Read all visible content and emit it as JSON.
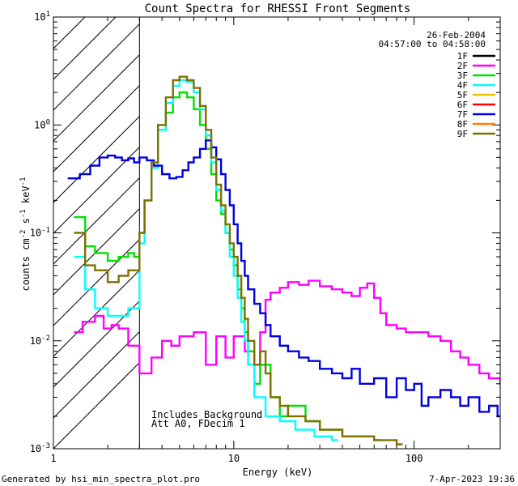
{
  "chart_data": {
    "type": "line",
    "title": "Count Spectra for RHESSI Front Segments",
    "xlabel": "Energy (keV)",
    "ylabel_parts": [
      "counts cm",
      "-2",
      " s",
      "-1",
      " keV",
      "-1"
    ],
    "xscale": "log",
    "yscale": "log",
    "xlim": [
      1,
      300
    ],
    "ylim": [
      0.001,
      10
    ],
    "x_ticks": [
      {
        "value": 1,
        "label": "1"
      },
      {
        "value": 10,
        "label": "10"
      },
      {
        "value": 100,
        "label": "100"
      }
    ],
    "y_ticks": [
      {
        "value": 0.001,
        "base": "10",
        "exp": "-3"
      },
      {
        "value": 0.01,
        "base": "10",
        "exp": "-2"
      },
      {
        "value": 0.1,
        "base": "10",
        "exp": "-1"
      },
      {
        "value": 1,
        "base": "10",
        "exp": "0"
      },
      {
        "value": 10,
        "base": "10",
        "exp": "1"
      }
    ],
    "date": "26-Feb-2004",
    "time_range": "04:57:00 to 04:58:00",
    "annotations": [
      "Includes Background",
      "Att A0, FDecim 1"
    ],
    "shaded_region_x": [
      1,
      3
    ],
    "legend_position": "top-right",
    "series": [
      {
        "name": "1F",
        "color": "#000000",
        "points": []
      },
      {
        "name": "2F",
        "color": "#ff00ff",
        "points": [
          [
            1.3,
            0.012
          ],
          [
            1.45,
            0.015
          ],
          [
            1.7,
            0.017
          ],
          [
            1.9,
            0.013
          ],
          [
            2.1,
            0.014
          ],
          [
            2.3,
            0.013
          ],
          [
            2.6,
            0.009
          ],
          [
            3.0,
            0.005
          ],
          [
            3.5,
            0.007
          ],
          [
            4.0,
            0.01
          ],
          [
            4.5,
            0.009
          ],
          [
            5.0,
            0.011
          ],
          [
            6.0,
            0.012
          ],
          [
            7.0,
            0.006
          ],
          [
            8.0,
            0.011
          ],
          [
            9.0,
            0.007
          ],
          [
            10.0,
            0.011
          ],
          [
            11.5,
            0.008
          ],
          [
            13.0,
            0.006
          ],
          [
            14.0,
            0.012
          ],
          [
            15.0,
            0.024
          ],
          [
            16.0,
            0.028
          ],
          [
            18.0,
            0.031
          ],
          [
            20.0,
            0.035
          ],
          [
            23.0,
            0.033
          ],
          [
            26.0,
            0.036
          ],
          [
            30.0,
            0.032
          ],
          [
            35.0,
            0.03
          ],
          [
            40.0,
            0.028
          ],
          [
            45.0,
            0.026
          ],
          [
            50.0,
            0.031
          ],
          [
            55.0,
            0.034
          ],
          [
            60.0,
            0.025
          ],
          [
            65.0,
            0.018
          ],
          [
            70.0,
            0.014
          ],
          [
            80.0,
            0.013
          ],
          [
            90.0,
            0.012
          ],
          [
            100.0,
            0.012
          ],
          [
            120.0,
            0.011
          ],
          [
            140.0,
            0.01
          ],
          [
            160.0,
            0.008
          ],
          [
            180.0,
            0.007
          ],
          [
            200.0,
            0.006
          ],
          [
            230.0,
            0.005
          ],
          [
            260.0,
            0.0045
          ],
          [
            300.0,
            0.004
          ]
        ]
      },
      {
        "name": "3F",
        "color": "#00e000",
        "points": [
          [
            1.3,
            0.14
          ],
          [
            1.5,
            0.075
          ],
          [
            1.7,
            0.065
          ],
          [
            2.0,
            0.055
          ],
          [
            2.3,
            0.06
          ],
          [
            2.6,
            0.065
          ],
          [
            2.8,
            0.06
          ],
          [
            3.0,
            0.1
          ],
          [
            3.2,
            0.2
          ],
          [
            3.5,
            0.4
          ],
          [
            3.8,
            0.9
          ],
          [
            4.2,
            1.3
          ],
          [
            4.6,
            1.8
          ],
          [
            5.0,
            2.0
          ],
          [
            5.5,
            1.8
          ],
          [
            6.0,
            1.4
          ],
          [
            6.5,
            1.0
          ],
          [
            7.0,
            0.6
          ],
          [
            7.5,
            0.35
          ],
          [
            8.0,
            0.2
          ],
          [
            8.5,
            0.15
          ],
          [
            9.0,
            0.1
          ],
          [
            9.5,
            0.07
          ],
          [
            10.0,
            0.05
          ],
          [
            10.5,
            0.03
          ],
          [
            11.0,
            0.02
          ],
          [
            11.5,
            0.012
          ],
          [
            12.0,
            0.008
          ],
          [
            13.0,
            0.004
          ],
          [
            14.0,
            0.006
          ],
          [
            16.0,
            0.003
          ],
          [
            18.0,
            0.002
          ],
          [
            20.0,
            0.0025
          ],
          [
            25.0,
            0.0018
          ],
          [
            30.0,
            0.0015
          ],
          [
            40.0,
            0.0013
          ],
          [
            60.0,
            0.0012
          ]
        ]
      },
      {
        "name": "4F",
        "color": "#00ffff",
        "points": [
          [
            1.3,
            0.06
          ],
          [
            1.5,
            0.03
          ],
          [
            1.7,
            0.02
          ],
          [
            2.0,
            0.017
          ],
          [
            2.3,
            0.017
          ],
          [
            2.6,
            0.02
          ],
          [
            3.0,
            0.08
          ],
          [
            3.2,
            0.2
          ],
          [
            3.5,
            0.4
          ],
          [
            3.8,
            0.9
          ],
          [
            4.2,
            1.6
          ],
          [
            4.6,
            2.3
          ],
          [
            5.0,
            2.6
          ],
          [
            5.5,
            2.5
          ],
          [
            6.0,
            2.0
          ],
          [
            6.5,
            1.4
          ],
          [
            7.0,
            0.8
          ],
          [
            7.5,
            0.45
          ],
          [
            8.0,
            0.25
          ],
          [
            8.5,
            0.16
          ],
          [
            9.0,
            0.1
          ],
          [
            9.5,
            0.06
          ],
          [
            10.0,
            0.04
          ],
          [
            10.5,
            0.025
          ],
          [
            11.0,
            0.015
          ],
          [
            11.5,
            0.01
          ],
          [
            12.0,
            0.006
          ],
          [
            13.0,
            0.003
          ],
          [
            15.0,
            0.002
          ],
          [
            18.0,
            0.0018
          ],
          [
            22.0,
            0.0015
          ],
          [
            28.0,
            0.0013
          ],
          [
            35.0,
            0.0012
          ]
        ]
      },
      {
        "name": "5F",
        "color": "#f0c000",
        "points": []
      },
      {
        "name": "6F",
        "color": "#ff0000",
        "points": []
      },
      {
        "name": "7F",
        "color": "#0000e0",
        "points": [
          [
            1.2,
            0.32
          ],
          [
            1.4,
            0.35
          ],
          [
            1.6,
            0.42
          ],
          [
            1.8,
            0.5
          ],
          [
            2.0,
            0.52
          ],
          [
            2.2,
            0.5
          ],
          [
            2.4,
            0.47
          ],
          [
            2.6,
            0.49
          ],
          [
            2.8,
            0.45
          ],
          [
            3.0,
            0.5
          ],
          [
            3.3,
            0.47
          ],
          [
            3.6,
            0.42
          ],
          [
            4.0,
            0.35
          ],
          [
            4.4,
            0.32
          ],
          [
            4.8,
            0.33
          ],
          [
            5.2,
            0.38
          ],
          [
            5.6,
            0.45
          ],
          [
            6.0,
            0.5
          ],
          [
            6.5,
            0.6
          ],
          [
            7.0,
            0.72
          ],
          [
            7.5,
            0.62
          ],
          [
            8.0,
            0.48
          ],
          [
            8.5,
            0.35
          ],
          [
            9.0,
            0.25
          ],
          [
            9.5,
            0.18
          ],
          [
            10.0,
            0.12
          ],
          [
            10.5,
            0.08
          ],
          [
            11.0,
            0.055
          ],
          [
            11.5,
            0.04
          ],
          [
            12.0,
            0.03
          ],
          [
            13.0,
            0.022
          ],
          [
            14.0,
            0.018
          ],
          [
            15.0,
            0.014
          ],
          [
            16.0,
            0.011
          ],
          [
            18.0,
            0.009
          ],
          [
            20.0,
            0.008
          ],
          [
            23.0,
            0.007
          ],
          [
            26.0,
            0.0065
          ],
          [
            30.0,
            0.0055
          ],
          [
            35.0,
            0.005
          ],
          [
            40.0,
            0.0045
          ],
          [
            45.0,
            0.0055
          ],
          [
            50.0,
            0.004
          ],
          [
            60.0,
            0.0045
          ],
          [
            70.0,
            0.003
          ],
          [
            80.0,
            0.0045
          ],
          [
            90.0,
            0.0035
          ],
          [
            100.0,
            0.004
          ],
          [
            110.0,
            0.0025
          ],
          [
            120.0,
            0.003
          ],
          [
            140.0,
            0.0035
          ],
          [
            160.0,
            0.003
          ],
          [
            180.0,
            0.0025
          ],
          [
            200.0,
            0.003
          ],
          [
            230.0,
            0.0022
          ],
          [
            260.0,
            0.0025
          ],
          [
            290.0,
            0.002
          ]
        ]
      },
      {
        "name": "8F",
        "color": "#ff8000",
        "points": []
      },
      {
        "name": "9F",
        "color": "#807000",
        "points": [
          [
            1.3,
            0.1
          ],
          [
            1.5,
            0.05
          ],
          [
            1.7,
            0.045
          ],
          [
            2.0,
            0.035
          ],
          [
            2.3,
            0.04
          ],
          [
            2.6,
            0.045
          ],
          [
            3.0,
            0.1
          ],
          [
            3.2,
            0.2
          ],
          [
            3.5,
            0.45
          ],
          [
            3.8,
            1.0
          ],
          [
            4.2,
            1.8
          ],
          [
            4.6,
            2.6
          ],
          [
            5.0,
            2.8
          ],
          [
            5.5,
            2.6
          ],
          [
            6.0,
            2.2
          ],
          [
            6.5,
            1.5
          ],
          [
            7.0,
            0.9
          ],
          [
            7.5,
            0.5
          ],
          [
            8.0,
            0.28
          ],
          [
            8.5,
            0.18
          ],
          [
            9.0,
            0.12
          ],
          [
            9.5,
            0.08
          ],
          [
            10.0,
            0.06
          ],
          [
            10.5,
            0.04
          ],
          [
            11.0,
            0.025
          ],
          [
            11.5,
            0.016
          ],
          [
            12.0,
            0.01
          ],
          [
            13.0,
            0.006
          ],
          [
            14.0,
            0.008
          ],
          [
            15.0,
            0.005
          ],
          [
            16.0,
            0.003
          ],
          [
            18.0,
            0.0025
          ],
          [
            20.0,
            0.002
          ],
          [
            25.0,
            0.0018
          ],
          [
            30.0,
            0.0015
          ],
          [
            40.0,
            0.0013
          ],
          [
            60.0,
            0.0012
          ],
          [
            80.0,
            0.0011
          ]
        ]
      }
    ]
  },
  "footer": {
    "generated_by": "Generated by hsi_min_spectra_plot.pro",
    "timestamp": "7-Apr-2023 19:36"
  }
}
